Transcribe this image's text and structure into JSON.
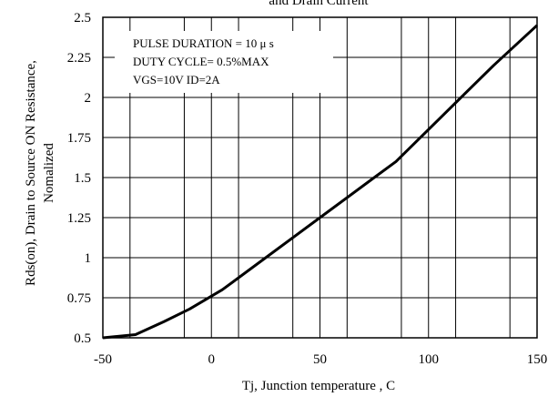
{
  "chart_data": {
    "type": "line",
    "title": "and Drain Current",
    "xlabel": "Tj, Junction temperature , C",
    "ylabel_lines": [
      "Rds(on), Drain to Source ON  Resistance,",
      "Nomalized"
    ],
    "xlim": [
      -50,
      150
    ],
    "ylim": [
      0.5,
      2.5
    ],
    "x_ticks": [
      -50,
      0,
      50,
      100,
      150
    ],
    "y_ticks": [
      0.5,
      0.75,
      1,
      1.25,
      1.5,
      1.75,
      2,
      2.25,
      2.5
    ],
    "x_tick_labels": [
      "-50",
      "0",
      "50",
      "100",
      "150"
    ],
    "y_tick_labels": [
      "0.5",
      "0.75",
      "1",
      "1.25",
      "1.5",
      "1.75",
      "2",
      "2.25",
      "2.5"
    ],
    "grid": true,
    "annotation_lines": [
      "PULSE    DURATION = 10 μ s",
      "DUTY   CYCLE= 0.5%MAX",
      "VGS=10V   ID=2A"
    ],
    "series": [
      {
        "x": [
          -50,
          -35,
          -22,
          -10,
          5,
          25,
          50,
          75,
          85,
          100,
          115,
          130,
          150
        ],
        "y": [
          0.5,
          0.52,
          0.6,
          0.68,
          0.8,
          1.0,
          1.25,
          1.5,
          1.6,
          1.8,
          2.0,
          2.2,
          2.45
        ]
      }
    ]
  }
}
